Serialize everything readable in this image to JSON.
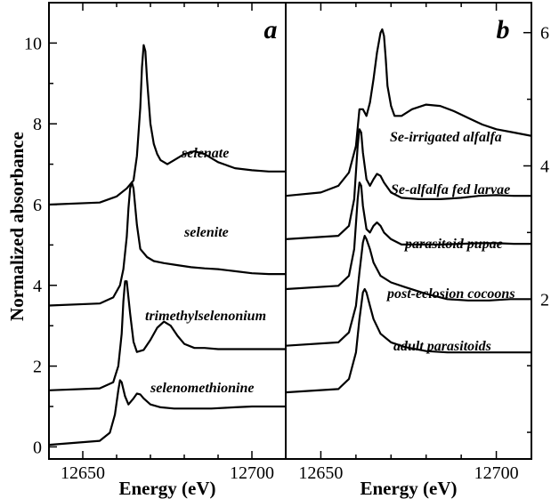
{
  "chart_data": [
    {
      "panel": "a",
      "type": "line",
      "xlabel": "Energy (eV)",
      "ylabel": "Normalized absorbance",
      "xlim": [
        12640,
        12710
      ],
      "ylim": [
        -0.3,
        11
      ],
      "xticks": [
        12650,
        12700
      ],
      "yticks": [
        0,
        2,
        4,
        6,
        8,
        10
      ],
      "y_axis_side": "left",
      "series": [
        {
          "name": "selenate",
          "baseline": 6.0,
          "x": [
            12640,
            12655,
            12660,
            12663,
            12665,
            12666,
            12667,
            12667.5,
            12668,
            12668.5,
            12669,
            12670,
            12671,
            12672,
            12673,
            12675,
            12677,
            12680,
            12683,
            12686,
            12690,
            12695,
            12700,
            12705,
            12710
          ],
          "y": [
            6.0,
            6.05,
            6.2,
            6.4,
            6.6,
            7.2,
            8.4,
            9.4,
            9.95,
            9.8,
            9.1,
            8.0,
            7.5,
            7.25,
            7.1,
            7.0,
            7.1,
            7.25,
            7.32,
            7.25,
            7.05,
            6.9,
            6.85,
            6.82,
            6.82
          ]
        },
        {
          "name": "selenite",
          "baseline": 3.5,
          "x": [
            12640,
            12655,
            12659,
            12661,
            12662,
            12663,
            12663.5,
            12664,
            12664.5,
            12665,
            12666,
            12667,
            12669,
            12671,
            12674,
            12678,
            12682,
            12686,
            12690,
            12695,
            12700,
            12705,
            12710
          ],
          "y": [
            3.5,
            3.55,
            3.7,
            4.0,
            4.4,
            5.2,
            5.9,
            6.4,
            6.55,
            6.4,
            5.5,
            4.9,
            4.7,
            4.6,
            4.55,
            4.5,
            4.45,
            4.42,
            4.4,
            4.35,
            4.3,
            4.28,
            4.28
          ]
        },
        {
          "name": "trimethylselenonium",
          "baseline": 1.4,
          "x": [
            12640,
            12655,
            12659,
            12660.5,
            12661.5,
            12662,
            12662.5,
            12663,
            12664,
            12665,
            12666,
            12668,
            12670,
            12672,
            12674,
            12676,
            12678,
            12680,
            12683,
            12686,
            12690,
            12695,
            12700,
            12705,
            12710
          ],
          "y": [
            1.4,
            1.45,
            1.6,
            2.0,
            2.8,
            3.6,
            4.1,
            4.1,
            3.3,
            2.6,
            2.35,
            2.4,
            2.65,
            2.95,
            3.1,
            3.0,
            2.75,
            2.55,
            2.45,
            2.45,
            2.42,
            2.42,
            2.42,
            2.42,
            2.42
          ]
        },
        {
          "name": "selenomethionine",
          "baseline": 0.05,
          "x": [
            12640,
            12655,
            12658,
            12659.5,
            12660.5,
            12661,
            12661.5,
            12662.5,
            12663.5,
            12665,
            12666,
            12667,
            12668,
            12670,
            12673,
            12677,
            12682,
            12688,
            12695,
            12700,
            12705,
            12710
          ],
          "y": [
            0.05,
            0.15,
            0.35,
            0.8,
            1.4,
            1.65,
            1.6,
            1.25,
            1.05,
            1.2,
            1.32,
            1.3,
            1.2,
            1.05,
            0.98,
            0.95,
            0.95,
            0.95,
            0.98,
            1.0,
            1.0,
            1.0
          ]
        }
      ]
    },
    {
      "panel": "b",
      "type": "line",
      "xlabel": "Energy (eV)",
      "ylabel": "",
      "xlim": [
        12640,
        12710
      ],
      "ylim": [
        -0.4,
        6.45
      ],
      "xticks": [
        12650,
        12700
      ],
      "yticks": [
        2,
        4,
        6
      ],
      "y_axis_side": "right",
      "series": [
        {
          "name": "Se-irrigated alfalfa",
          "baseline": 3.55,
          "x": [
            12640,
            12650,
            12655,
            12658,
            12660,
            12661,
            12662,
            12663,
            12664,
            12665,
            12666,
            12667,
            12667.5,
            12668,
            12668.5,
            12669,
            12670,
            12671,
            12673,
            12676,
            12680,
            12684,
            12688,
            12692,
            12696,
            12700,
            12705,
            12710
          ],
          "y": [
            3.55,
            3.6,
            3.7,
            3.9,
            4.3,
            4.85,
            4.85,
            4.75,
            4.95,
            5.3,
            5.7,
            6.0,
            6.05,
            5.95,
            5.6,
            5.2,
            4.9,
            4.75,
            4.75,
            4.85,
            4.92,
            4.9,
            4.82,
            4.72,
            4.62,
            4.55,
            4.5,
            4.45
          ]
        },
        {
          "name": "Se-alfalfa fed larvae",
          "baseline": 2.9,
          "x": [
            12640,
            12655,
            12658,
            12659.5,
            12660.5,
            12661,
            12661.5,
            12662,
            12663,
            12664,
            12665,
            12666,
            12667,
            12668,
            12670,
            12673,
            12678,
            12684,
            12690,
            12695,
            12700,
            12705,
            12710
          ],
          "y": [
            2.9,
            2.95,
            3.1,
            3.5,
            4.3,
            4.55,
            4.5,
            4.2,
            3.8,
            3.7,
            3.8,
            3.88,
            3.85,
            3.75,
            3.6,
            3.52,
            3.5,
            3.5,
            3.52,
            3.55,
            3.56,
            3.55,
            3.55
          ]
        },
        {
          "name": "parasitoid pupae",
          "baseline": 2.15,
          "x": [
            12640,
            12655,
            12658,
            12659.5,
            12660.5,
            12661,
            12661.5,
            12662,
            12663,
            12664,
            12665,
            12666,
            12667,
            12668,
            12670,
            12673,
            12678,
            12684,
            12690,
            12695,
            12700,
            12705,
            12710
          ],
          "y": [
            2.15,
            2.2,
            2.35,
            2.75,
            3.5,
            3.75,
            3.7,
            3.4,
            3.05,
            3.0,
            3.1,
            3.15,
            3.1,
            3.0,
            2.9,
            2.82,
            2.82,
            2.82,
            2.83,
            2.84,
            2.84,
            2.83,
            2.83
          ]
        },
        {
          "name": "post-eclosion cocoons",
          "baseline": 1.3,
          "x": [
            12640,
            12655,
            12658,
            12660,
            12661,
            12662,
            12662.5,
            12663,
            12664,
            12665,
            12667,
            12670,
            12674,
            12680,
            12686,
            12692,
            12698,
            12704,
            12710
          ],
          "y": [
            1.3,
            1.35,
            1.5,
            1.9,
            2.4,
            2.85,
            2.95,
            2.9,
            2.75,
            2.55,
            2.35,
            2.25,
            2.18,
            2.08,
            2.0,
            1.98,
            1.98,
            2.0,
            2.0
          ]
        },
        {
          "name": "adult parasitoids",
          "baseline": 0.6,
          "x": [
            12640,
            12655,
            12658,
            12660,
            12661,
            12662,
            12662.5,
            12663,
            12664,
            12665,
            12667,
            12670,
            12674,
            12680,
            12686,
            12692,
            12698,
            12704,
            12710
          ],
          "y": [
            0.6,
            0.65,
            0.8,
            1.2,
            1.7,
            2.1,
            2.15,
            2.1,
            1.9,
            1.7,
            1.48,
            1.35,
            1.28,
            1.22,
            1.2,
            1.2,
            1.2,
            1.2,
            1.2
          ]
        }
      ]
    }
  ]
}
